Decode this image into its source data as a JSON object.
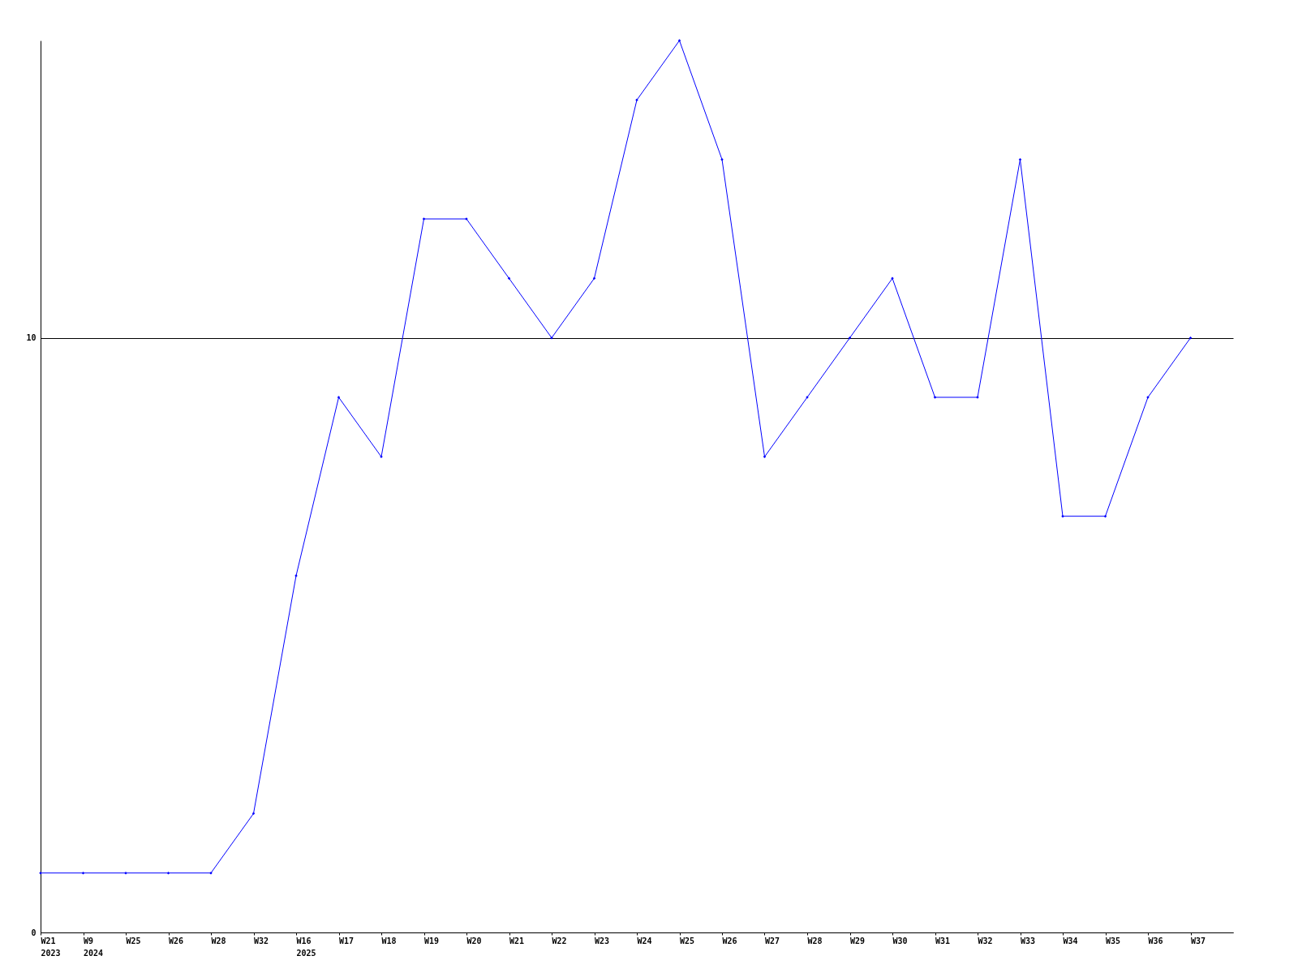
{
  "chart_data": {
    "type": "line",
    "categories": [
      "W21\n2023",
      "W9\n2024",
      "W25",
      "W26",
      "W28",
      "W32",
      "W16\n2025",
      "W17",
      "W18",
      "W19",
      "W20",
      "W21",
      "W22",
      "W23",
      "W24",
      "W25",
      "W26",
      "W27",
      "W28",
      "W29",
      "W30",
      "W31",
      "W32",
      "W33",
      "W34",
      "W35",
      "W36",
      "W37"
    ],
    "series": [
      {
        "color": "#0000ff",
        "values": [
          1,
          1,
          1,
          1,
          1,
          2,
          6,
          9,
          8,
          12,
          12,
          11,
          10,
          11,
          14,
          15,
          13,
          8,
          9,
          10,
          11,
          9,
          9,
          13,
          7,
          7,
          9,
          10
        ]
      }
    ],
    "ylim": [
      0,
      15
    ],
    "yticks": [
      0,
      10
    ],
    "grid": "y",
    "marker": "diamond",
    "legend": false
  }
}
